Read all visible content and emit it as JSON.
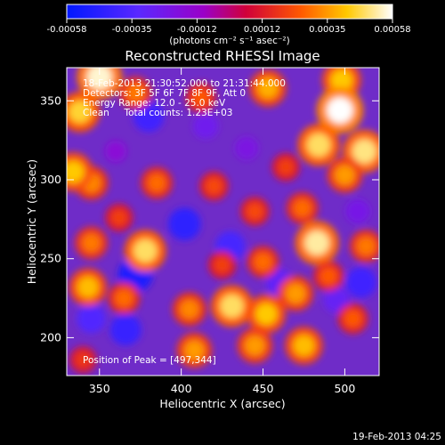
{
  "colorbar": {
    "tick_labels": [
      "-0.00058",
      "-0.00035",
      "-0.00012",
      "0.00012",
      "0.00035",
      "0.00058"
    ],
    "unit_label": "(photons cm⁻² s⁻¹ asec⁻²)",
    "colors": [
      "#0018ff",
      "#7a3cff",
      "#c000a0",
      "#e01818",
      "#ff9a00",
      "#ffffff"
    ]
  },
  "chart_data": {
    "type": "heatmap",
    "title": "Reconstructed RHESSI Image",
    "xlabel": "Heliocentric X (arcsec)",
    "ylabel": "Heliocentric Y (arcsec)",
    "xlim": [
      330,
      521
    ],
    "ylim": [
      176,
      371
    ],
    "x_ticks": [
      350,
      400,
      450,
      500
    ],
    "y_ticks": [
      200,
      250,
      300,
      350
    ],
    "value_range": [
      -0.00058,
      0.00058
    ],
    "annotations": [
      "18-Feb-2013 21:30:52.000 to 21:31:44.000",
      "Detectors: 3F 5F 6F 7F 8F 9F, Att 0",
      "Energy Range: 12.0 - 25.0 keV",
      "Clean     Total counts: 1.23E+03"
    ],
    "peak_label": "Position of Peak = [497,344]",
    "peak": [
      497,
      344
    ],
    "hot_spots": [
      {
        "x": 350,
        "y": 365,
        "v": 0.00055
      },
      {
        "x": 338,
        "y": 343,
        "v": 0.00045
      },
      {
        "x": 372,
        "y": 355,
        "v": 0.0003
      },
      {
        "x": 412,
        "y": 352,
        "v": 0.00025
      },
      {
        "x": 453,
        "y": 358,
        "v": 0.00038
      },
      {
        "x": 498,
        "y": 363,
        "v": 0.00042
      },
      {
        "x": 497,
        "y": 344,
        "v": 0.00058
      },
      {
        "x": 484,
        "y": 322,
        "v": 0.00048
      },
      {
        "x": 512,
        "y": 318,
        "v": 0.0005
      },
      {
        "x": 500,
        "y": 303,
        "v": 0.00035
      },
      {
        "x": 464,
        "y": 308,
        "v": 0.0002
      },
      {
        "x": 385,
        "y": 298,
        "v": 0.00028
      },
      {
        "x": 345,
        "y": 298,
        "v": 0.00032
      },
      {
        "x": 334,
        "y": 305,
        "v": 0.00042
      },
      {
        "x": 420,
        "y": 296,
        "v": 0.00022
      },
      {
        "x": 362,
        "y": 276,
        "v": 0.0002
      },
      {
        "x": 378,
        "y": 255,
        "v": 0.00048
      },
      {
        "x": 345,
        "y": 260,
        "v": 0.0003
      },
      {
        "x": 445,
        "y": 280,
        "v": 0.00022
      },
      {
        "x": 474,
        "y": 282,
        "v": 0.00028
      },
      {
        "x": 483,
        "y": 260,
        "v": 0.00052
      },
      {
        "x": 513,
        "y": 258,
        "v": 0.0003
      },
      {
        "x": 450,
        "y": 248,
        "v": 0.00028
      },
      {
        "x": 490,
        "y": 239,
        "v": 0.00025
      },
      {
        "x": 425,
        "y": 246,
        "v": 0.0002
      },
      {
        "x": 343,
        "y": 232,
        "v": 0.0004
      },
      {
        "x": 365,
        "y": 225,
        "v": 0.00028
      },
      {
        "x": 405,
        "y": 218,
        "v": 0.00032
      },
      {
        "x": 408,
        "y": 192,
        "v": 0.00035
      },
      {
        "x": 431,
        "y": 220,
        "v": 0.00048
      },
      {
        "x": 452,
        "y": 215,
        "v": 0.00042
      },
      {
        "x": 470,
        "y": 228,
        "v": 0.00035
      },
      {
        "x": 445,
        "y": 195,
        "v": 0.00035
      },
      {
        "x": 475,
        "y": 195,
        "v": 0.0004
      },
      {
        "x": 505,
        "y": 212,
        "v": 0.00025
      },
      {
        "x": 340,
        "y": 186,
        "v": 0.00018
      }
    ],
    "cold_spots": [
      {
        "x": 380,
        "y": 340,
        "v": -0.0004
      },
      {
        "x": 415,
        "y": 334,
        "v": -0.00025
      },
      {
        "x": 360,
        "y": 318,
        "v": -0.00015
      },
      {
        "x": 402,
        "y": 272,
        "v": -0.00045
      },
      {
        "x": 372,
        "y": 240,
        "v": -0.0005
      },
      {
        "x": 345,
        "y": 212,
        "v": -0.00035
      },
      {
        "x": 366,
        "y": 205,
        "v": -0.00042
      },
      {
        "x": 430,
        "y": 258,
        "v": -0.00038
      },
      {
        "x": 460,
        "y": 235,
        "v": -0.0003
      },
      {
        "x": 495,
        "y": 224,
        "v": -0.00028
      },
      {
        "x": 510,
        "y": 235,
        "v": -0.0004
      },
      {
        "x": 508,
        "y": 280,
        "v": -0.00022
      },
      {
        "x": 440,
        "y": 320,
        "v": -0.0002
      }
    ]
  },
  "timestamp": "19-Feb-2013 04:25"
}
